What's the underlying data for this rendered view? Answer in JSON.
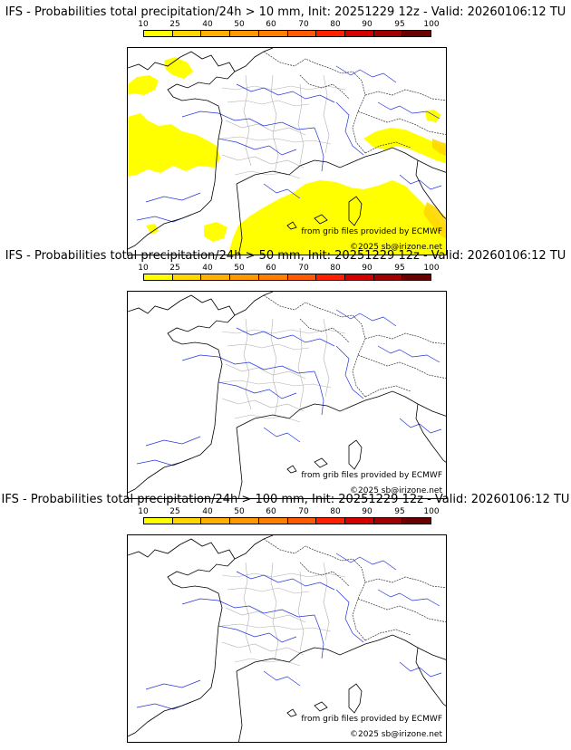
{
  "colorbar": {
    "labels": [
      "10",
      "25",
      "40",
      "50",
      "60",
      "70",
      "80",
      "90",
      "95",
      "100"
    ],
    "colors": [
      "#ffff00",
      "#ffd700",
      "#ffb000",
      "#ff9900",
      "#ff7f00",
      "#ff5a00",
      "#ff2000",
      "#d40000",
      "#a00000",
      "#6a0000"
    ]
  },
  "panels": [
    {
      "title": "IFS - Probabilities total precipitation/24h > 10 mm, Init: 20251229 12z - Valid: 20260106:12 TU",
      "credit_source": "from grib files provided by ECMWF",
      "credit_copy": "©2025 sb@irizone.net",
      "has_field": true
    },
    {
      "title": "IFS - Probabilities total precipitation/24h > 50 mm, Init: 20251229 12z - Valid: 20260106:12 TU",
      "credit_source": "from grib files provided by ECMWF",
      "credit_copy": "©2025 sb@irizone.net",
      "has_field": false
    },
    {
      "title": "IFS - Probabilities total precipitation/24h > 100 mm, Init: 20251229 12z - Valid: 20260106:12 TU",
      "credit_source": "from grib files provided by ECMWF",
      "credit_copy": "©2025 sb@irizone.net",
      "has_field": false
    }
  ]
}
